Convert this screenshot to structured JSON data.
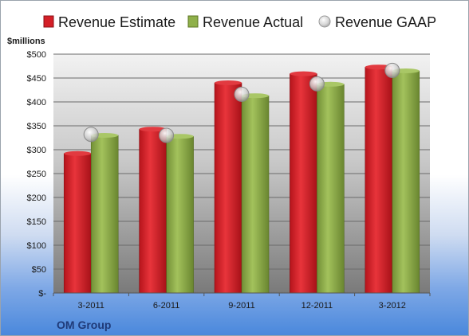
{
  "chart_data": {
    "type": "bar",
    "title": "",
    "ylabel": "$millions",
    "xlabel": "",
    "categories": [
      "3-2011",
      "6-2011",
      "9-2011",
      "12-2011",
      "3-2012"
    ],
    "series": [
      {
        "name": "Revenue Estimate",
        "type": "bar",
        "color": "#d41f27",
        "values": [
          292,
          343,
          440,
          459,
          473
        ]
      },
      {
        "name": "Revenue Actual",
        "type": "bar",
        "color": "#8fb04a",
        "values": [
          330,
          328,
          413,
          437,
          465
        ]
      },
      {
        "name": "Revenue GAAP",
        "type": "marker",
        "color": "#c8c8c8",
        "values": [
          332,
          330,
          416,
          438,
          466
        ]
      }
    ],
    "ylim": [
      0,
      500
    ],
    "yticks": [
      0,
      50,
      100,
      150,
      200,
      250,
      300,
      350,
      400,
      450,
      500
    ],
    "ytick_labels": [
      "$-",
      "$50",
      "$100",
      "$150",
      "$200",
      "$250",
      "$300",
      "$350",
      "$400",
      "$450",
      "$500"
    ],
    "grid": true,
    "legend": "top"
  },
  "footer": {
    "company": "OM Group"
  }
}
